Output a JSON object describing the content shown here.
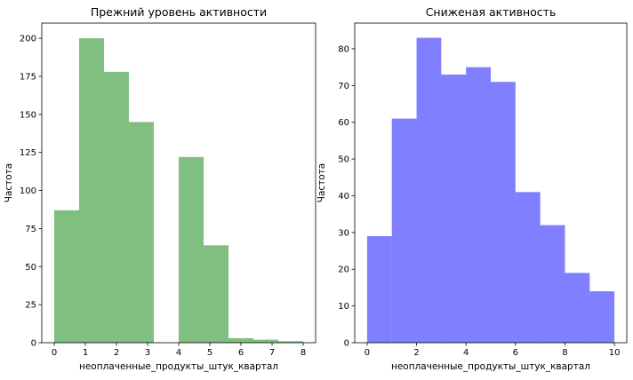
{
  "chart_data": [
    {
      "type": "bar",
      "title": "Прежний уровень активности",
      "xlabel": "неоплаченные_продукты_штук_квартал",
      "ylabel": "Частота",
      "xlim": [
        -0.4,
        8.4
      ],
      "ylim": [
        0,
        210
      ],
      "xticks": [
        0,
        1,
        2,
        3,
        4,
        5,
        6,
        7,
        8
      ],
      "yticks": [
        0,
        25,
        50,
        75,
        100,
        125,
        150,
        175,
        200
      ],
      "bin_edges": [
        0,
        0.8,
        1.6,
        2.4,
        3.2,
        4.0,
        4.8,
        5.6,
        6.4,
        7.2,
        8.0
      ],
      "values": [
        87,
        200,
        178,
        145,
        0,
        122,
        64,
        3,
        2,
        1
      ],
      "color": "#008000",
      "opacity": 0.5,
      "grid": false
    },
    {
      "type": "bar",
      "title": "Сниженая активность",
      "xlabel": "неоплаченные_продукты_штук_квартал",
      "ylabel": "Частота",
      "xlim": [
        -0.5,
        10.5
      ],
      "ylim": [
        0,
        87
      ],
      "xticks": [
        0,
        2,
        4,
        6,
        8,
        10
      ],
      "yticks": [
        0,
        10,
        20,
        30,
        40,
        50,
        60,
        70,
        80
      ],
      "bin_edges": [
        0,
        1,
        2,
        3,
        4,
        5,
        6,
        7,
        8,
        9,
        10
      ],
      "values": [
        29,
        61,
        83,
        73,
        75,
        71,
        41,
        32,
        19,
        14
      ],
      "color": "#0000ff",
      "opacity": 0.5,
      "grid": false
    }
  ]
}
